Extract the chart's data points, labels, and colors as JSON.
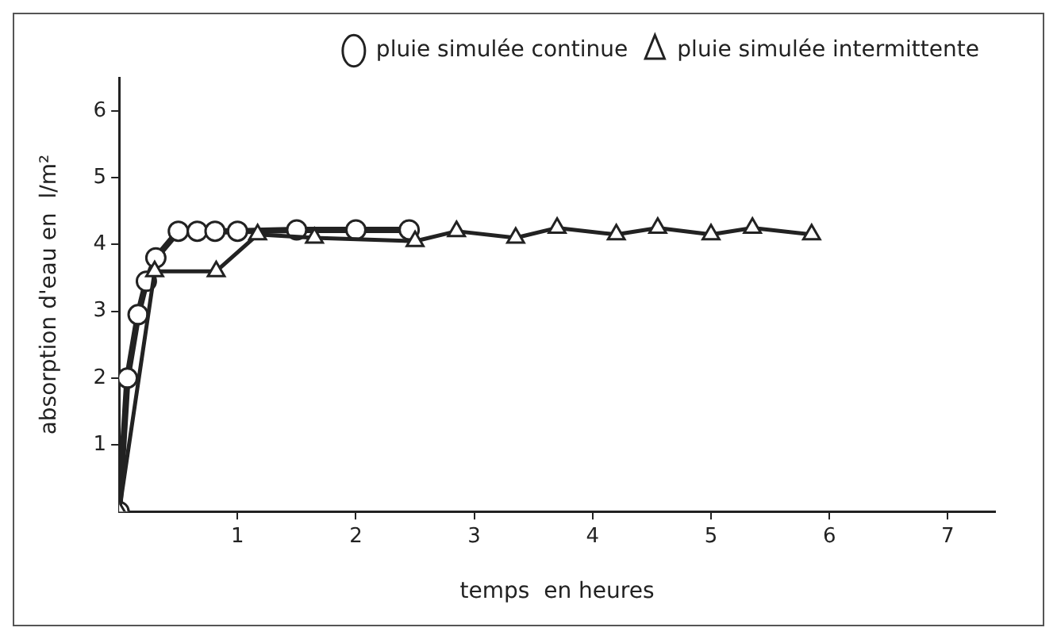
{
  "chart_data": {
    "type": "line",
    "xlabel": "temps  en heures",
    "ylabel": "absorption d'eau en  l/m²",
    "xlim": [
      0,
      7.4
    ],
    "ylim": [
      0,
      6.5
    ],
    "xticks": [
      1,
      2,
      3,
      4,
      5,
      6,
      7
    ],
    "yticks": [
      1,
      2,
      3,
      4,
      5,
      6
    ],
    "legend": "top right",
    "series": [
      {
        "name": "pluie simulée continue",
        "color": "#222222",
        "marker": "circle",
        "line_style": "solid",
        "x": [
          0,
          0.07,
          0.16,
          0.23,
          0.31,
          0.5,
          0.66,
          0.81,
          1.0,
          1.5,
          2.0,
          2.45
        ],
        "values": [
          0,
          2.0,
          2.95,
          3.45,
          3.8,
          4.2,
          4.2,
          4.2,
          4.2,
          4.22,
          4.22,
          4.22
        ]
      },
      {
        "name": "pluie simulée intermittente",
        "color": "#222222",
        "marker": "triangle",
        "line_style": "solid",
        "x": [
          0,
          0.3,
          0.82,
          1.17,
          1.65,
          2.5,
          2.85,
          3.35,
          3.7,
          4.2,
          4.55,
          5.0,
          5.35,
          5.85
        ],
        "values": [
          0,
          3.6,
          3.6,
          4.15,
          4.1,
          4.05,
          4.2,
          4.1,
          4.25,
          4.15,
          4.25,
          4.15,
          4.25,
          4.15
        ]
      }
    ]
  }
}
